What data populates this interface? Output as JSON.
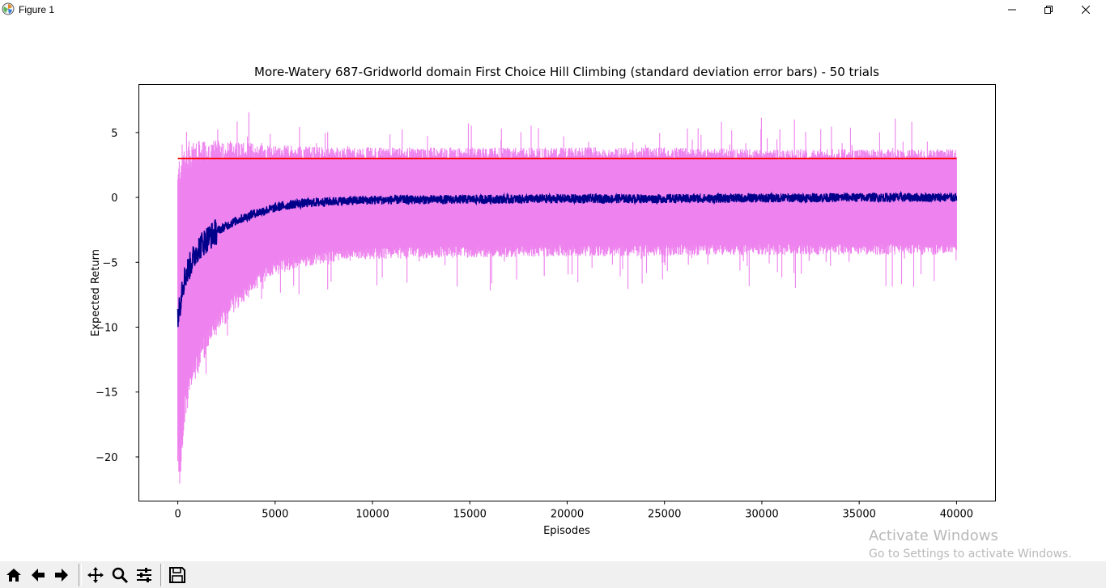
{
  "window": {
    "title": "Figure 1",
    "icons": {
      "app": "matplotlib-icon",
      "minimize": "minimize-icon",
      "maximize": "restore-icon",
      "close": "close-icon"
    }
  },
  "toolbar": {
    "buttons": [
      "home-icon",
      "back-arrow-icon",
      "forward-arrow-icon",
      "pan-icon",
      "zoom-icon",
      "subplots-config-icon",
      "save-icon"
    ]
  },
  "watermark": {
    "line1": "Activate Windows",
    "line2": "Go to Settings to activate Windows."
  },
  "chart_data": {
    "type": "line",
    "title": "More-Watery 687-Gridworld domain First Choice Hill Climbing (standard deviation error bars) - 50 trials",
    "xlabel": "Episodes",
    "ylabel": "Expected Return",
    "xlim": [
      -2000,
      42000
    ],
    "ylim": [
      -23.4,
      8.7
    ],
    "xticks": [
      0,
      5000,
      10000,
      15000,
      20000,
      25000,
      30000,
      35000,
      40000
    ],
    "yticks": [
      5,
      0,
      -5,
      -10,
      -15,
      -20
    ],
    "grid": false,
    "legend": "none",
    "colors": {
      "mean": "#00008b",
      "error": "#ee82ee",
      "reference": "#ff0000"
    },
    "series": [
      {
        "role": "mean",
        "x": [
          0,
          100,
          200,
          400,
          700,
          1000,
          1500,
          2000,
          3000,
          4000,
          5000,
          6000,
          8000,
          10000,
          15000,
          20000,
          25000,
          30000,
          35000,
          40000
        ],
        "y": [
          -9,
          -8.5,
          -7,
          -6,
          -5,
          -4,
          -3.2,
          -2.6,
          -1.8,
          -1.2,
          -0.8,
          -0.5,
          -0.3,
          -0.2,
          -0.15,
          -0.1,
          -0.1,
          -0.05,
          0,
          0
        ],
        "noise": 0.35
      },
      {
        "role": "error-band",
        "x": [
          0,
          100,
          200,
          400,
          700,
          1000,
          1500,
          2000,
          3000,
          4000,
          5000,
          6000,
          8000,
          10000,
          15000,
          20000,
          25000,
          30000,
          35000,
          40000
        ],
        "upper": [
          1,
          2.3,
          2.8,
          3.2,
          3.3,
          3.4,
          3.5,
          3.6,
          3.7,
          3.6,
          3.5,
          3.5,
          3.4,
          3.4,
          3.4,
          3.4,
          3.4,
          3.3,
          3.3,
          3.3
        ],
        "lower": [
          -20,
          -21,
          -19,
          -16,
          -14,
          -13,
          -11,
          -10,
          -8,
          -6.5,
          -5.5,
          -5,
          -4.5,
          -4.3,
          -4.2,
          -4.1,
          -4.1,
          -4,
          -4,
          -4
        ]
      },
      {
        "role": "reference",
        "x": [
          0,
          40000
        ],
        "y": [
          3,
          3
        ]
      }
    ]
  }
}
